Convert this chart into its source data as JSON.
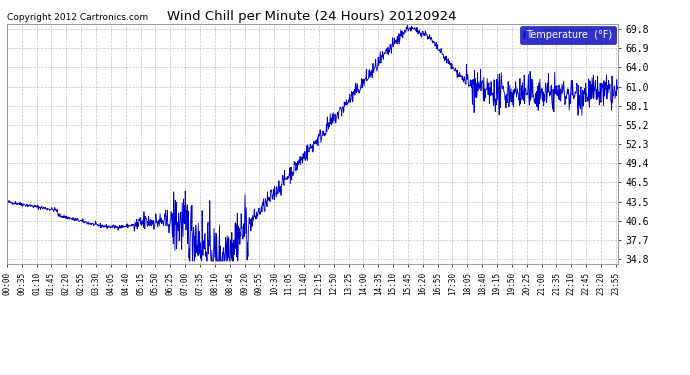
{
  "title": "Wind Chill per Minute (24 Hours) 20120924",
  "copyright": "Copyright 2012 Cartronics.com",
  "legend_label": "Temperature  (°F)",
  "line_color": "#0000cc",
  "background_color": "#ffffff",
  "grid_color": "#bbbbbb",
  "yticks": [
    34.8,
    37.7,
    40.6,
    43.5,
    46.5,
    49.4,
    52.3,
    55.2,
    58.1,
    61.0,
    64.0,
    66.9,
    69.8
  ],
  "ymin": 34.0,
  "ymax": 70.5,
  "xtick_labels": [
    "00:00",
    "00:35",
    "01:10",
    "01:45",
    "02:20",
    "02:55",
    "03:30",
    "04:05",
    "04:40",
    "05:15",
    "05:50",
    "06:25",
    "07:00",
    "07:35",
    "08:10",
    "08:45",
    "09:20",
    "09:55",
    "10:30",
    "11:05",
    "11:40",
    "12:15",
    "12:50",
    "13:25",
    "14:00",
    "14:35",
    "15:10",
    "15:45",
    "16:20",
    "16:55",
    "17:30",
    "18:05",
    "18:40",
    "19:15",
    "19:50",
    "20:25",
    "21:00",
    "21:35",
    "22:10",
    "22:45",
    "23:20",
    "23:55"
  ]
}
